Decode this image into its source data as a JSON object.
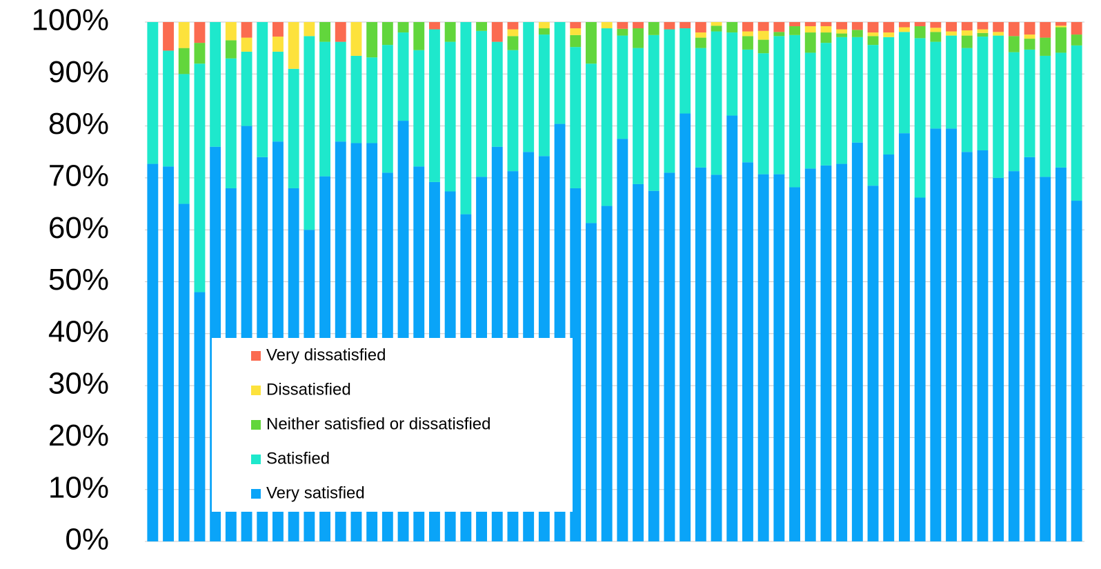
{
  "chart_data": {
    "type": "stacked_bar_100",
    "categories": [
      null,
      null,
      null,
      null,
      null,
      null,
      null,
      null,
      null,
      null,
      null,
      null,
      null,
      null,
      null,
      null,
      null,
      null,
      null,
      null,
      null,
      null,
      null,
      null,
      null,
      null,
      null,
      null,
      null,
      null,
      null,
      null,
      null,
      null,
      null,
      null,
      null,
      null,
      null,
      null,
      null,
      null,
      null,
      null,
      null,
      null,
      null,
      null,
      null,
      null,
      null,
      null,
      null,
      null,
      null,
      null,
      null,
      null,
      null,
      null
    ],
    "series": [
      {
        "name": "Very satisfied",
        "color": "#0aa4f8",
        "values": [
          72.7,
          72.2,
          65,
          48,
          76,
          68,
          80,
          74,
          77,
          68,
          60,
          70.3,
          77,
          76.7,
          76.7,
          71,
          81,
          72.2,
          69.2,
          67.4,
          63,
          70.2,
          76,
          71.3,
          75,
          74.2,
          80.4,
          68,
          61.3,
          64.6,
          77.5,
          68.8,
          67.5,
          71,
          82.4,
          72,
          70.6,
          82,
          73,
          70.7,
          70.7,
          68.2,
          71.8,
          72.4,
          72.7,
          76.8,
          68.5,
          74.5,
          78.6,
          66.2,
          79.5,
          79.5,
          75,
          75.3,
          70,
          71.3,
          74,
          70.2,
          72,
          65.6
        ]
      },
      {
        "name": "Satisfied",
        "color": "#1ee8cc",
        "values": [
          27.3,
          22.3,
          25,
          44,
          24,
          25,
          14.3,
          26,
          17.3,
          23,
          37.3,
          25.9,
          19.2,
          16.8,
          16.5,
          24.6,
          17,
          22.4,
          29.4,
          28.8,
          37,
          28.1,
          20.2,
          23.3,
          25,
          23.4,
          19.6,
          27.2,
          30.7,
          34.2,
          19.9,
          26.2,
          30,
          27.6,
          16.4,
          23,
          27.6,
          16,
          21.7,
          23.3,
          26.6,
          29.3,
          22.3,
          23.6,
          24.4,
          20.3,
          27.1,
          22.6,
          19.5,
          30.7,
          16.7,
          17.9,
          20,
          21.9,
          27.4,
          22.9,
          20.7,
          23.3,
          22.1,
          29.9
        ]
      },
      {
        "name": "Neither satisfied or dissatisfied",
        "color": "#62d63c",
        "values": [
          0,
          0,
          5,
          4,
          0,
          3.5,
          0,
          0,
          0,
          0,
          0,
          3.8,
          0,
          0,
          6.8,
          4.4,
          2,
          5.4,
          0,
          3.8,
          0,
          1.7,
          0,
          2.7,
          0,
          1.2,
          0,
          2.3,
          8,
          0,
          1.3,
          3.8,
          2.5,
          0,
          0,
          2,
          1.1,
          2,
          2.6,
          2.6,
          0.8,
          1.7,
          3.9,
          2,
          0.7,
          1.4,
          1.7,
          0,
          0,
          2.3,
          1.9,
          0,
          2.4,
          0.7,
          0,
          3.1,
          2.1,
          3.5,
          4.9,
          2.1
        ]
      },
      {
        "name": "Dissatisfied",
        "color": "#fde23c",
        "values": [
          0,
          0,
          5,
          0,
          0,
          3.5,
          2.7,
          0,
          2.9,
          9,
          2.7,
          0,
          0,
          6.5,
          0,
          0,
          0,
          0,
          0,
          0,
          0,
          0,
          0,
          1.3,
          0,
          1.2,
          0,
          1.3,
          0,
          1.2,
          0,
          0,
          0,
          0,
          0,
          1,
          0.7,
          0,
          0.9,
          1.7,
          0,
          0,
          1.2,
          1.2,
          0.8,
          0,
          0.7,
          0.9,
          0.9,
          0,
          0.8,
          0.8,
          1,
          0.7,
          0.7,
          0,
          0.8,
          0,
          0.3,
          0
        ]
      },
      {
        "name": "Very dissatisfied",
        "color": "#fb6b50",
        "values": [
          0,
          5.5,
          0,
          4,
          0,
          0,
          3,
          0,
          2.8,
          0,
          0,
          0,
          3.8,
          0,
          0,
          0,
          0,
          0,
          1.4,
          0,
          0,
          0,
          3.8,
          1.4,
          0,
          0,
          0,
          1.2,
          0,
          0,
          1.3,
          1.2,
          0,
          1.4,
          1.2,
          2,
          0,
          0,
          1.8,
          1.7,
          1.9,
          0.8,
          0.8,
          0.8,
          1.4,
          1.5,
          2,
          2,
          1,
          0.8,
          1.1,
          1.8,
          1.6,
          1.4,
          1.9,
          2.7,
          2.4,
          3,
          0.7,
          2.4
        ]
      }
    ],
    "ylim": [
      0,
      100
    ],
    "yticks": [
      {
        "value": 0,
        "label": "0%"
      },
      {
        "value": 10,
        "label": "10%"
      },
      {
        "value": 20,
        "label": "20%"
      },
      {
        "value": 30,
        "label": "30%"
      },
      {
        "value": 40,
        "label": "40%"
      },
      {
        "value": 50,
        "label": "50%"
      },
      {
        "value": 60,
        "label": "60%"
      },
      {
        "value": 70,
        "label": "70%"
      },
      {
        "value": 80,
        "label": "80%"
      },
      {
        "value": 90,
        "label": "90%"
      },
      {
        "value": 100,
        "label": "100%"
      }
    ],
    "grid": true,
    "legend": "lower-left"
  }
}
